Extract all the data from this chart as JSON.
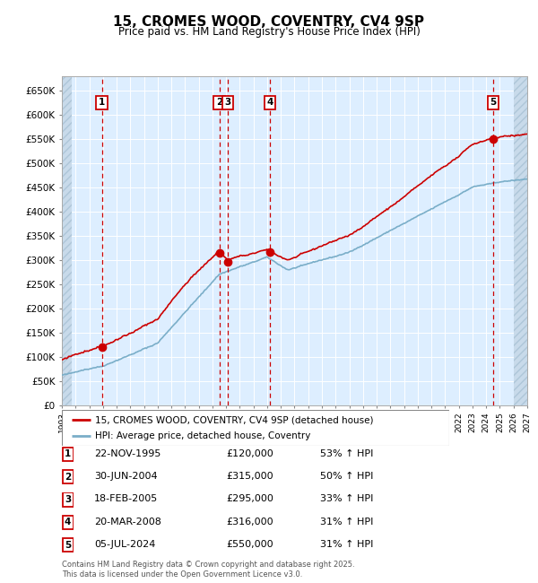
{
  "title": "15, CROMES WOOD, COVENTRY, CV4 9SP",
  "subtitle": "Price paid vs. HM Land Registry's House Price Index (HPI)",
  "sales": [
    {
      "label": "1",
      "date_float": 1995.917,
      "price": 120000
    },
    {
      "label": "2",
      "date_float": 2004.5,
      "price": 315000
    },
    {
      "label": "3",
      "date_float": 2005.125,
      "price": 295000
    },
    {
      "label": "4",
      "date_float": 2008.208,
      "price": 316000
    },
    {
      "label": "5",
      "date_float": 2024.5,
      "price": 550000
    }
  ],
  "table_rows": [
    [
      "1",
      "22-NOV-1995",
      "£120,000",
      "53% ↑ HPI"
    ],
    [
      "2",
      "30-JUN-2004",
      "£315,000",
      "50% ↑ HPI"
    ],
    [
      "3",
      "18-FEB-2005",
      "£295,000",
      "33% ↑ HPI"
    ],
    [
      "4",
      "20-MAR-2008",
      "£316,000",
      "31% ↑ HPI"
    ],
    [
      "5",
      "05-JUL-2024",
      "£550,000",
      "31% ↑ HPI"
    ]
  ],
  "legend_line1": "15, CROMES WOOD, COVENTRY, CV4 9SP (detached house)",
  "legend_line2": "HPI: Average price, detached house, Coventry",
  "footer": "Contains HM Land Registry data © Crown copyright and database right 2025.\nThis data is licensed under the Open Government Licence v3.0.",
  "ylim": [
    0,
    680000
  ],
  "yticks": [
    0,
    50000,
    100000,
    150000,
    200000,
    250000,
    300000,
    350000,
    400000,
    450000,
    500000,
    550000,
    600000,
    650000
  ],
  "chart_bg": "#ddeeff",
  "grid_color": "#ffffff",
  "sale_line_color": "#cc0000",
  "hpi_line_color": "#7aaec8",
  "dashed_line_color": "#cc0000",
  "box_color": "#cc0000",
  "xmin": 1993.0,
  "xmax": 2027.0,
  "hatch_xmin": 1993.0,
  "hatch_xmax": 1993.7,
  "hatch_xmin2": 2026.0,
  "hatch_xmax2": 2027.5
}
